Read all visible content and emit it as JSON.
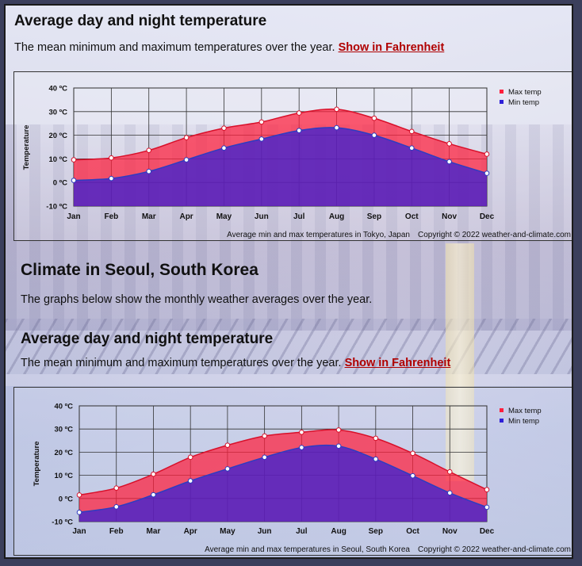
{
  "sections": {
    "tokyo_heading": "Average day and night temperature",
    "tokyo_intro": "The mean minimum and maximum temperatures over the year.",
    "tokyo_link": "Show in Fahrenheit",
    "seoul_title": "Climate in Seoul, South Korea",
    "seoul_intro": "The graphs below show the monthly weather averages over the year.",
    "seoul_heading": "Average day and night temperature",
    "seoul_temp_intro": "The mean minimum and maximum temperatures over the year.",
    "seoul_link": "Show in Fahrenheit"
  },
  "colors": {
    "max_fill": "#ff1f3c",
    "min_fill": "#2f1fd8",
    "max_line": "#d8102a",
    "min_line": "#2e3cc0",
    "link": "#b00000"
  },
  "chart_data": [
    {
      "type": "area",
      "title": "",
      "ylabel": "Temperature",
      "caption": "Average min and max temperatures in Tokyo, Japan",
      "copyright": "Copyright © 2022  weather-and-climate.com",
      "categories": [
        "Jan",
        "Feb",
        "Mar",
        "Apr",
        "May",
        "Jun",
        "Jul",
        "Aug",
        "Sep",
        "Oct",
        "Nov",
        "Dec"
      ],
      "ylim": [
        -10,
        40
      ],
      "yticks": [
        "-10 ºC",
        "0 ºC",
        "10 ºC",
        "20 ºC",
        "30 ºC",
        "40 ºC"
      ],
      "grid": true,
      "legend_position": "top-right",
      "series": [
        {
          "name": "Max temp",
          "values": [
            9.6,
            10.4,
            13.6,
            19.0,
            23.0,
            25.6,
            29.4,
            31.0,
            27.2,
            21.6,
            16.4,
            12.0
          ]
        },
        {
          "name": "Min temp",
          "values": [
            0.9,
            1.7,
            4.7,
            9.6,
            14.6,
            18.4,
            22.0,
            23.2,
            20.0,
            14.6,
            8.8,
            3.9
          ]
        }
      ]
    },
    {
      "type": "area",
      "title": "",
      "ylabel": "Temperature",
      "caption": "Average min and max temperatures in Seoul, South Korea",
      "copyright": "Copyright © 2022  weather-and-climate.com",
      "categories": [
        "Jan",
        "Feb",
        "Mar",
        "Apr",
        "May",
        "Jun",
        "Jul",
        "Aug",
        "Sep",
        "Oct",
        "Nov",
        "Dec"
      ],
      "ylim": [
        -10,
        40
      ],
      "yticks": [
        "-10 ºC",
        "0 ºC",
        "10 ºC",
        "20 ºC",
        "30 ºC",
        "40 ºC"
      ],
      "grid": true,
      "legend_position": "top-right",
      "series": [
        {
          "name": "Max temp",
          "values": [
            1.5,
            4.5,
            10.5,
            17.8,
            23.0,
            27.0,
            28.6,
            29.6,
            26.0,
            19.5,
            11.5,
            3.8
          ]
        },
        {
          "name": "Min temp",
          "values": [
            -6.0,
            -3.6,
            1.6,
            7.6,
            12.8,
            17.8,
            22.0,
            22.6,
            17.0,
            9.8,
            2.4,
            -3.8
          ]
        }
      ]
    }
  ]
}
